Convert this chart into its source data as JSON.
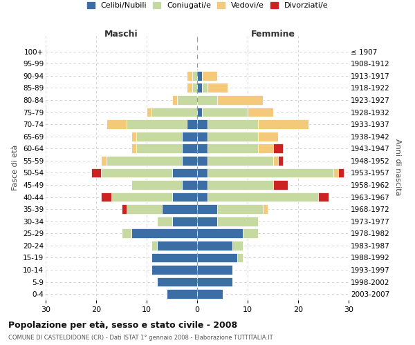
{
  "age_groups": [
    "0-4",
    "5-9",
    "10-14",
    "15-19",
    "20-24",
    "25-29",
    "30-34",
    "35-39",
    "40-44",
    "45-49",
    "50-54",
    "55-59",
    "60-64",
    "65-69",
    "70-74",
    "75-79",
    "80-84",
    "85-89",
    "90-94",
    "95-99",
    "100+"
  ],
  "birth_years": [
    "2003-2007",
    "1998-2002",
    "1993-1997",
    "1988-1992",
    "1983-1987",
    "1978-1982",
    "1973-1977",
    "1968-1972",
    "1963-1967",
    "1958-1962",
    "1953-1957",
    "1948-1952",
    "1943-1947",
    "1938-1942",
    "1933-1937",
    "1928-1932",
    "1923-1927",
    "1918-1922",
    "1913-1917",
    "1908-1912",
    "≤ 1907"
  ],
  "maschi": {
    "celibi": [
      6,
      8,
      9,
      9,
      8,
      13,
      5,
      7,
      5,
      3,
      5,
      3,
      3,
      3,
      2,
      0,
      0,
      0,
      0,
      0,
      0
    ],
    "coniugati": [
      0,
      0,
      0,
      0,
      1,
      2,
      3,
      7,
      12,
      10,
      14,
      15,
      9,
      9,
      12,
      9,
      4,
      1,
      1,
      0,
      0
    ],
    "vedovi": [
      0,
      0,
      0,
      0,
      0,
      0,
      0,
      0,
      0,
      0,
      0,
      1,
      1,
      1,
      4,
      1,
      1,
      1,
      1,
      0,
      0
    ],
    "divorziati": [
      0,
      0,
      0,
      0,
      0,
      0,
      0,
      1,
      2,
      0,
      2,
      0,
      0,
      0,
      0,
      0,
      0,
      0,
      0,
      0,
      0
    ]
  },
  "femmine": {
    "nubili": [
      5,
      7,
      7,
      8,
      7,
      9,
      4,
      4,
      2,
      2,
      2,
      2,
      2,
      2,
      2,
      1,
      0,
      1,
      1,
      0,
      0
    ],
    "coniugate": [
      0,
      0,
      0,
      1,
      2,
      3,
      8,
      9,
      22,
      13,
      25,
      13,
      10,
      10,
      10,
      9,
      4,
      1,
      0,
      0,
      0
    ],
    "vedove": [
      0,
      0,
      0,
      0,
      0,
      0,
      0,
      1,
      0,
      0,
      1,
      1,
      3,
      4,
      10,
      5,
      9,
      4,
      3,
      0,
      0
    ],
    "divorziate": [
      0,
      0,
      0,
      0,
      0,
      0,
      0,
      0,
      2,
      3,
      1,
      1,
      2,
      0,
      0,
      0,
      0,
      0,
      0,
      0,
      0
    ]
  },
  "colors": {
    "celibi": "#3a6ea5",
    "coniugati": "#c5d9a0",
    "vedovi": "#f5c97a",
    "divorziati": "#cc2222"
  },
  "title": "Popolazione per età, sesso e stato civile - 2008",
  "subtitle": "COMUNE DI CASTELDIDONE (CR) - Dati ISTAT 1° gennaio 2008 - Elaborazione TUTTITALIA.IT",
  "xlabel_left": "Maschi",
  "xlabel_right": "Femmine",
  "ylabel_left": "Fasce di età",
  "ylabel_right": "Anni di nascita",
  "xlim": 30,
  "legend_labels": [
    "Celibi/Nubili",
    "Coniugati/e",
    "Vedovi/e",
    "Divorziati/e"
  ],
  "background_color": "#ffffff",
  "grid_color": "#cccccc"
}
